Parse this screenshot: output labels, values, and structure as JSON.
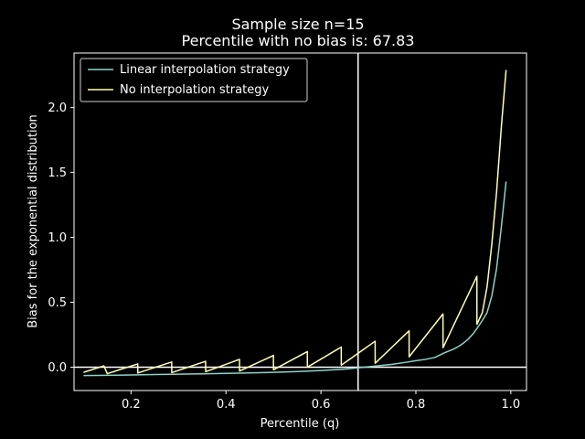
{
  "chart_data": {
    "type": "line",
    "title": "Sample size n=15",
    "subtitle": "Percentile with no bias is: 67.83",
    "xlabel": "Percentile (q)",
    "ylabel": "Bias for the exponential distribution",
    "xlim": [
      0.08,
      1.033
    ],
    "ylim": [
      -0.18,
      2.42
    ],
    "xticks": [
      0.2,
      0.4,
      0.6,
      0.8,
      1.0
    ],
    "xtick_labels": [
      "0.2",
      "0.4",
      "0.6",
      "0.8",
      "1.0"
    ],
    "yticks": [
      0.0,
      0.5,
      1.0,
      1.5,
      2.0
    ],
    "ytick_labels": [
      "0.0",
      "0.5",
      "1.0",
      "1.5",
      "2.0"
    ],
    "grid": false,
    "legend_position": "top-left",
    "hline_y": 0,
    "vline_x": 0.6783,
    "colors": {
      "background": "#000000",
      "axes": "#ffffff",
      "reference_lines": "#ffffff"
    },
    "series": [
      {
        "name": "Linear interpolation strategy",
        "color": "#8dd3c7",
        "x": [
          0.1,
          0.15,
          0.2,
          0.25,
          0.3,
          0.35,
          0.4,
          0.45,
          0.5,
          0.55,
          0.6,
          0.65,
          0.6783,
          0.7,
          0.72,
          0.75,
          0.78,
          0.8,
          0.82,
          0.84,
          0.86,
          0.87,
          0.88,
          0.89,
          0.9,
          0.91,
          0.92,
          0.93,
          0.94,
          0.95,
          0.96,
          0.97,
          0.98,
          0.99
        ],
        "y": [
          -0.065,
          -0.063,
          -0.06,
          -0.057,
          -0.054,
          -0.051,
          -0.048,
          -0.044,
          -0.04,
          -0.034,
          -0.026,
          -0.015,
          -0.005,
          0.003,
          0.01,
          0.022,
          0.038,
          0.05,
          0.06,
          0.075,
          0.11,
          0.125,
          0.14,
          0.16,
          0.185,
          0.215,
          0.255,
          0.305,
          0.36,
          0.42,
          0.55,
          0.76,
          1.08,
          1.43
        ]
      },
      {
        "name": "No interpolation strategy",
        "color": "#ffffb3",
        "x": [
          0.1,
          0.1428,
          0.15,
          0.2142,
          0.2143,
          0.2857,
          0.2858,
          0.3571,
          0.3572,
          0.4285,
          0.4286,
          0.5,
          0.5001,
          0.5714,
          0.5715,
          0.6428,
          0.6429,
          0.7142,
          0.7143,
          0.7857,
          0.7858,
          0.8571,
          0.8572,
          0.9285,
          0.9286,
          0.94,
          0.95,
          0.96,
          0.97,
          0.98,
          0.99
        ],
        "y": [
          -0.04,
          0.01,
          -0.05,
          0.025,
          -0.045,
          0.04,
          -0.042,
          0.045,
          -0.035,
          0.06,
          -0.03,
          0.09,
          -0.02,
          0.12,
          0.0,
          0.155,
          0.015,
          0.2,
          0.03,
          0.28,
          0.08,
          0.41,
          0.15,
          0.7,
          0.33,
          0.42,
          0.62,
          0.95,
          1.35,
          1.85,
          2.29
        ]
      }
    ]
  }
}
